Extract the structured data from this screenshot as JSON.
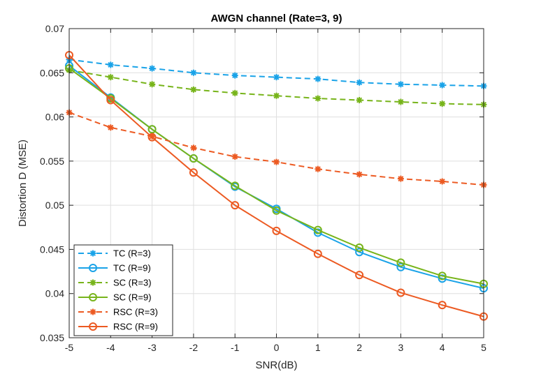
{
  "chart_data": {
    "type": "line",
    "title": "AWGN channel (Rate=3, 9)",
    "xlabel": "SNR(dB)",
    "ylabel": "Distortion D (MSE)",
    "xlim": [
      -5,
      5
    ],
    "ylim": [
      0.035,
      0.07
    ],
    "grid": true,
    "legend_position": "bottom-left",
    "x": [
      -5,
      -4,
      -3,
      -2,
      -1,
      0,
      1,
      2,
      3,
      4,
      5
    ],
    "x_ticks": [
      "-5",
      "-4",
      "-3",
      "-2",
      "-1",
      "0",
      "1",
      "2",
      "3",
      "4",
      "5"
    ],
    "y_ticks": [
      {
        "value": 0.035,
        "label": "0.035"
      },
      {
        "value": 0.04,
        "label": "0.04"
      },
      {
        "value": 0.045,
        "label": "0.045"
      },
      {
        "value": 0.05,
        "label": "0.05"
      },
      {
        "value": 0.055,
        "label": "0.055"
      },
      {
        "value": 0.06,
        "label": "0.06"
      },
      {
        "value": 0.065,
        "label": "0.065"
      },
      {
        "value": 0.07,
        "label": "0.07"
      }
    ],
    "series": [
      {
        "name": "TC (R=3)",
        "color": "#1aa3e8",
        "line": "dashed",
        "marker": "asterisk",
        "values": [
          0.0665,
          0.0659,
          0.0655,
          0.065,
          0.0647,
          0.0645,
          0.0643,
          0.0639,
          0.0637,
          0.0636,
          0.0635
        ]
      },
      {
        "name": "TC (R=9)",
        "color": "#1aa3e8",
        "line": "solid",
        "marker": "circle",
        "values": [
          0.0658,
          0.0622,
          0.0586,
          0.0553,
          0.0521,
          0.0496,
          0.0469,
          0.0447,
          0.043,
          0.0417,
          0.0406
        ]
      },
      {
        "name": "SC (R=3)",
        "color": "#77b41a",
        "line": "dashed",
        "marker": "asterisk",
        "values": [
          0.0653,
          0.0645,
          0.0637,
          0.0631,
          0.0627,
          0.0624,
          0.0621,
          0.0619,
          0.0617,
          0.0615,
          0.0614
        ]
      },
      {
        "name": "SC (R=9)",
        "color": "#77b41a",
        "line": "solid",
        "marker": "circle",
        "values": [
          0.0655,
          0.0621,
          0.0586,
          0.0553,
          0.0522,
          0.0494,
          0.0472,
          0.0452,
          0.0435,
          0.042,
          0.0411
        ]
      },
      {
        "name": "RSC (R=3)",
        "color": "#ec5a22",
        "line": "dashed",
        "marker": "asterisk",
        "values": [
          0.0605,
          0.0588,
          0.0578,
          0.0565,
          0.0555,
          0.0549,
          0.0541,
          0.0535,
          0.053,
          0.0527,
          0.0523
        ]
      },
      {
        "name": "RSC (R=9)",
        "color": "#ec5a22",
        "line": "solid",
        "marker": "circle",
        "values": [
          0.067,
          0.0619,
          0.0577,
          0.0537,
          0.05,
          0.0471,
          0.0445,
          0.0421,
          0.0401,
          0.0387,
          0.0374
        ]
      }
    ]
  }
}
